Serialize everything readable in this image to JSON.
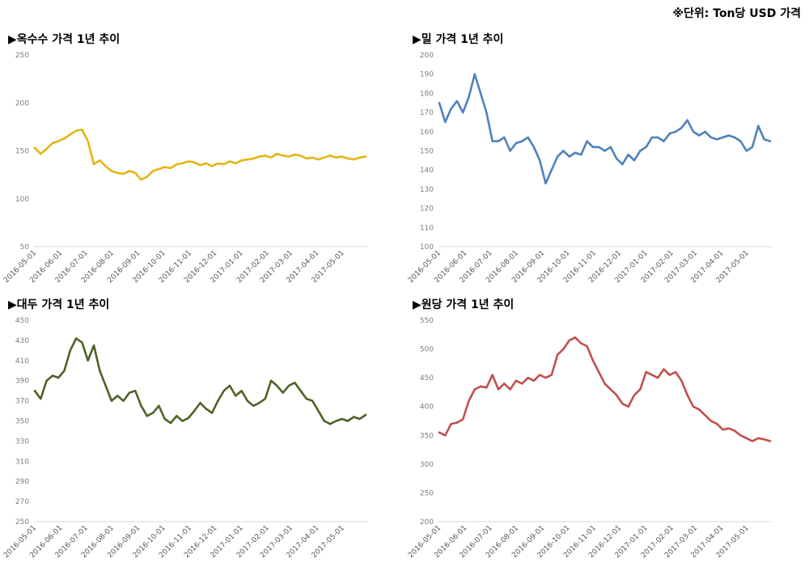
{
  "unit_note": "※단위: Ton당 USD 가격",
  "chart_data": [
    {
      "type": "line",
      "title": "▶옥수수 가격 1년 추이",
      "color": "#E6B414",
      "ylim": [
        50,
        250
      ],
      "yticks": [
        50,
        100,
        150,
        200,
        250
      ],
      "xtick_labels": [
        "2016-05-01",
        "2016-06-01",
        "2016-07-01",
        "2016-08-01",
        "2016-09-01",
        "2016-10-01",
        "2016-11-01",
        "2016-12-01",
        "2017-01-01",
        "2017-02-01",
        "2017-03-01",
        "2017-04-01",
        "2017-05-01"
      ],
      "series": [
        {
          "x": [
            "2016-05-02",
            "2016-05-09",
            "2016-05-16",
            "2016-05-23",
            "2016-05-30",
            "2016-06-06",
            "2016-06-13",
            "2016-06-20",
            "2016-06-27",
            "2016-07-04",
            "2016-07-11",
            "2016-07-18",
            "2016-07-25",
            "2016-08-01",
            "2016-08-08",
            "2016-08-15",
            "2016-08-22",
            "2016-08-29",
            "2016-09-05",
            "2016-09-12",
            "2016-09-19",
            "2016-09-26",
            "2016-10-03",
            "2016-10-10",
            "2016-10-17",
            "2016-10-24",
            "2016-10-31",
            "2016-11-07",
            "2016-11-14",
            "2016-11-21",
            "2016-11-28",
            "2016-12-05",
            "2016-12-12",
            "2016-12-19",
            "2016-12-26",
            "2017-01-02",
            "2017-01-09",
            "2017-01-16",
            "2017-01-23",
            "2017-01-30",
            "2017-02-06",
            "2017-02-13",
            "2017-02-20",
            "2017-02-27",
            "2017-03-06",
            "2017-03-13",
            "2017-03-20",
            "2017-03-27",
            "2017-04-03",
            "2017-04-10",
            "2017-04-17",
            "2017-04-24",
            "2017-05-01",
            "2017-05-08",
            "2017-05-15",
            "2017-05-22",
            "2017-05-29"
          ],
          "values": [
            153,
            147,
            152,
            158,
            160,
            163,
            167,
            171,
            172,
            160,
            136,
            140,
            134,
            129,
            127,
            126,
            129,
            127,
            120,
            123,
            129,
            131,
            133,
            132,
            136,
            137,
            139,
            138,
            135,
            137,
            134,
            137,
            136,
            139,
            137,
            140,
            141,
            142,
            144,
            145,
            143,
            147,
            145,
            144,
            146,
            145,
            142,
            143,
            141,
            143,
            145,
            143,
            144,
            142,
            141,
            143,
            144
          ]
        }
      ]
    },
    {
      "type": "line",
      "title": "▶밀 가격 1년 추이",
      "color": "#4F81BD",
      "ylim": [
        100,
        200
      ],
      "yticks": [
        100,
        110,
        120,
        130,
        140,
        150,
        160,
        170,
        180,
        190,
        200
      ],
      "xtick_labels": [
        "2016-05-01",
        "2016-06-01",
        "2016-07-01",
        "2016-08-01",
        "2016-09-01",
        "2016-10-01",
        "2016-11-01",
        "2016-12-01",
        "2017-01-01",
        "2017-02-01",
        "2017-03-01",
        "2017-04-01",
        "2017-05-01"
      ],
      "series": [
        {
          "x": [
            "2016-05-02",
            "2016-05-09",
            "2016-05-16",
            "2016-05-23",
            "2016-05-30",
            "2016-06-06",
            "2016-06-13",
            "2016-06-20",
            "2016-06-27",
            "2016-07-04",
            "2016-07-11",
            "2016-07-18",
            "2016-07-25",
            "2016-08-01",
            "2016-08-08",
            "2016-08-15",
            "2016-08-22",
            "2016-08-29",
            "2016-09-05",
            "2016-09-12",
            "2016-09-19",
            "2016-09-26",
            "2016-10-03",
            "2016-10-10",
            "2016-10-17",
            "2016-10-24",
            "2016-10-31",
            "2016-11-07",
            "2016-11-14",
            "2016-11-21",
            "2016-11-28",
            "2016-12-05",
            "2016-12-12",
            "2016-12-19",
            "2016-12-26",
            "2017-01-02",
            "2017-01-09",
            "2017-01-16",
            "2017-01-23",
            "2017-01-30",
            "2017-02-06",
            "2017-02-13",
            "2017-02-20",
            "2017-02-27",
            "2017-03-06",
            "2017-03-13",
            "2017-03-20",
            "2017-03-27",
            "2017-04-03",
            "2017-04-10",
            "2017-04-17",
            "2017-04-24",
            "2017-05-01",
            "2017-05-08",
            "2017-05-15",
            "2017-05-22",
            "2017-05-29"
          ],
          "values": [
            175,
            165,
            172,
            176,
            170,
            178,
            190,
            180,
            170,
            155,
            155,
            157,
            150,
            154,
            155,
            157,
            152,
            145,
            133,
            140,
            147,
            150,
            147,
            149,
            148,
            155,
            152,
            152,
            150,
            152,
            146,
            143,
            148,
            145,
            150,
            152,
            157,
            157,
            155,
            159,
            160,
            162,
            166,
            160,
            158,
            160,
            157,
            156,
            157,
            158,
            157,
            155,
            150,
            152,
            163,
            156,
            155
          ]
        }
      ]
    },
    {
      "type": "line",
      "title": "▶대두 가격 1년 추이",
      "color": "#4F6228",
      "ylim": [
        250,
        450
      ],
      "yticks": [
        250,
        270,
        290,
        310,
        330,
        350,
        370,
        390,
        410,
        430,
        450
      ],
      "xtick_labels": [
        "2016-05-01",
        "2016-06-01",
        "2016-07-01",
        "2016-08-01",
        "2016-09-01",
        "2016-10-01",
        "2016-11-01",
        "2016-12-01",
        "2017-01-01",
        "2017-02-01",
        "2017-03-01",
        "2017-04-01",
        "2017-05-01"
      ],
      "series": [
        {
          "x": [
            "2016-05-02",
            "2016-05-09",
            "2016-05-16",
            "2016-05-23",
            "2016-05-30",
            "2016-06-06",
            "2016-06-13",
            "2016-06-20",
            "2016-06-27",
            "2016-07-04",
            "2016-07-11",
            "2016-07-18",
            "2016-07-25",
            "2016-08-01",
            "2016-08-08",
            "2016-08-15",
            "2016-08-22",
            "2016-08-29",
            "2016-09-05",
            "2016-09-12",
            "2016-09-19",
            "2016-09-26",
            "2016-10-03",
            "2016-10-10",
            "2016-10-17",
            "2016-10-24",
            "2016-10-31",
            "2016-11-07",
            "2016-11-14",
            "2016-11-21",
            "2016-11-28",
            "2016-12-05",
            "2016-12-12",
            "2016-12-19",
            "2016-12-26",
            "2017-01-02",
            "2017-01-09",
            "2017-01-16",
            "2017-01-23",
            "2017-01-30",
            "2017-02-06",
            "2017-02-13",
            "2017-02-20",
            "2017-02-27",
            "2017-03-06",
            "2017-03-13",
            "2017-03-20",
            "2017-03-27",
            "2017-04-03",
            "2017-04-10",
            "2017-04-17",
            "2017-04-24",
            "2017-05-01",
            "2017-05-08",
            "2017-05-15",
            "2017-05-22",
            "2017-05-29"
          ],
          "values": [
            380,
            372,
            390,
            395,
            393,
            400,
            420,
            432,
            428,
            410,
            425,
            400,
            385,
            370,
            375,
            370,
            378,
            380,
            365,
            355,
            358,
            365,
            352,
            348,
            355,
            350,
            353,
            360,
            368,
            362,
            358,
            370,
            380,
            385,
            375,
            380,
            370,
            365,
            368,
            372,
            390,
            385,
            378,
            385,
            388,
            380,
            372,
            370,
            360,
            350,
            347,
            350,
            352,
            350,
            354,
            352,
            356
          ]
        }
      ]
    },
    {
      "type": "line",
      "title": "▶원당 가격 1년 추이",
      "color": "#C0504D",
      "ylim": [
        200,
        550
      ],
      "yticks": [
        200,
        250,
        300,
        350,
        400,
        450,
        500,
        550
      ],
      "xtick_labels": [
        "2016-05-01",
        "2016-06-01",
        "2016-07-01",
        "2016-08-01",
        "2016-09-01",
        "2016-10-01",
        "2016-11-01",
        "2016-12-01",
        "2017-01-01",
        "2017-02-01",
        "2017-03-01",
        "2017-04-01",
        "2017-05-01"
      ],
      "series": [
        {
          "x": [
            "2016-05-02",
            "2016-05-09",
            "2016-05-16",
            "2016-05-23",
            "2016-05-30",
            "2016-06-06",
            "2016-06-13",
            "2016-06-20",
            "2016-06-27",
            "2016-07-04",
            "2016-07-11",
            "2016-07-18",
            "2016-07-25",
            "2016-08-01",
            "2016-08-08",
            "2016-08-15",
            "2016-08-22",
            "2016-08-29",
            "2016-09-05",
            "2016-09-12",
            "2016-09-19",
            "2016-09-26",
            "2016-10-03",
            "2016-10-10",
            "2016-10-17",
            "2016-10-24",
            "2016-10-31",
            "2016-11-07",
            "2016-11-14",
            "2016-11-21",
            "2016-11-28",
            "2016-12-05",
            "2016-12-12",
            "2016-12-19",
            "2016-12-26",
            "2017-01-02",
            "2017-01-09",
            "2017-01-16",
            "2017-01-23",
            "2017-01-30",
            "2017-02-06",
            "2017-02-13",
            "2017-02-20",
            "2017-02-27",
            "2017-03-06",
            "2017-03-13",
            "2017-03-20",
            "2017-03-27",
            "2017-04-03",
            "2017-04-10",
            "2017-04-17",
            "2017-04-24",
            "2017-05-01",
            "2017-05-08",
            "2017-05-15",
            "2017-05-22",
            "2017-05-29"
          ],
          "values": [
            355,
            350,
            370,
            372,
            378,
            410,
            430,
            435,
            433,
            455,
            430,
            440,
            430,
            445,
            440,
            450,
            445,
            455,
            450,
            455,
            490,
            500,
            515,
            520,
            510,
            505,
            480,
            460,
            440,
            430,
            420,
            405,
            400,
            420,
            430,
            460,
            455,
            450,
            465,
            455,
            460,
            445,
            420,
            400,
            395,
            385,
            375,
            370,
            360,
            362,
            358,
            350,
            345,
            340,
            345,
            343,
            340
          ]
        }
      ]
    }
  ]
}
